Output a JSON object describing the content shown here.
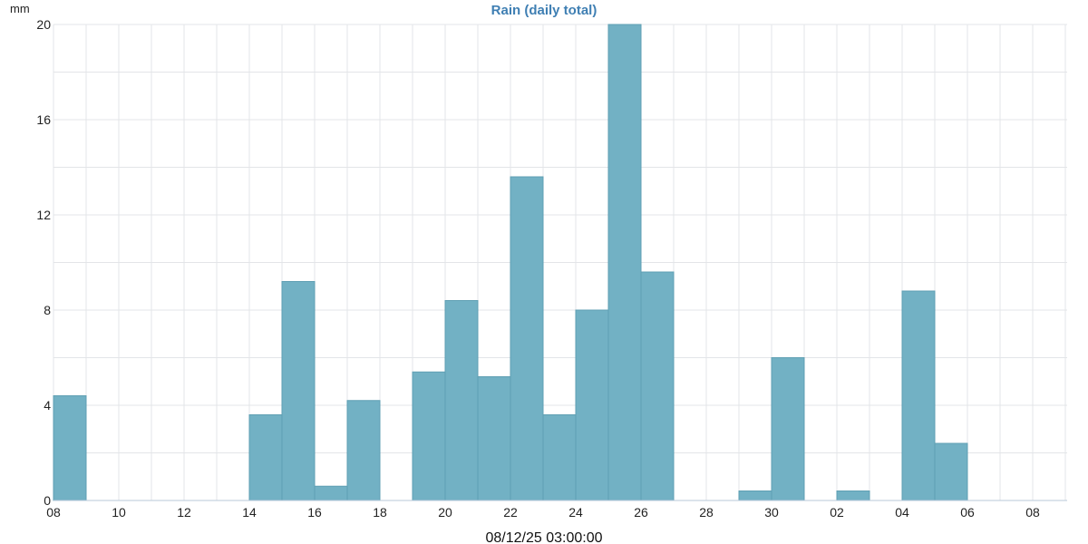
{
  "chart_data": {
    "type": "bar",
    "title": "Rain (daily total)",
    "ylabel": "mm",
    "xlabel": "",
    "footer": "08/12/25 03:00:00",
    "ylim": [
      0,
      20
    ],
    "y_ticks": [
      "0",
      "4",
      "8",
      "12",
      "16",
      "20"
    ],
    "x_ticks": [
      "08",
      "10",
      "12",
      "14",
      "16",
      "18",
      "20",
      "22",
      "24",
      "26",
      "28",
      "30",
      "02",
      "04",
      "06",
      "08"
    ],
    "categories": [
      "08",
      "09",
      "10",
      "11",
      "12",
      "13",
      "14",
      "15",
      "16",
      "17",
      "18",
      "19",
      "20",
      "21",
      "22",
      "23",
      "24",
      "25",
      "26",
      "27",
      "28",
      "29",
      "30",
      "01",
      "02",
      "03",
      "04",
      "05",
      "06",
      "07",
      "08"
    ],
    "values": [
      4.4,
      0,
      0,
      0,
      0,
      0,
      3.6,
      9.2,
      0.6,
      4.2,
      0,
      5.4,
      8.4,
      5.2,
      13.6,
      3.6,
      8.0,
      20.0,
      9.6,
      0,
      0,
      0.4,
      6.0,
      0,
      0.4,
      0,
      8.8,
      2.4,
      0,
      0,
      0
    ],
    "colors": {
      "bar": "#72b1c4",
      "bar_edge": "#5f9fb3",
      "title": "#3f7fb3",
      "grid": "#e3e5e8",
      "axis": "#b8c9da"
    },
    "grid": true,
    "legend": "none"
  }
}
